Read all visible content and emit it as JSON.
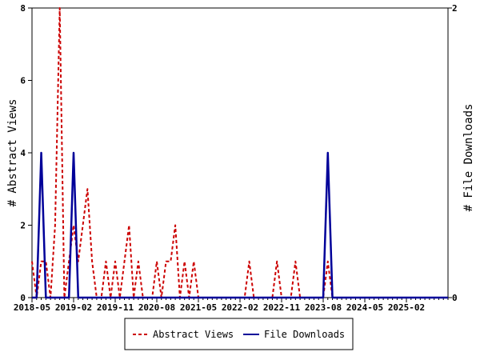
{
  "chart_data": {
    "type": "line",
    "title": "",
    "x_tick_labels": [
      "2018-05",
      "2019-02",
      "2019-11",
      "2020-08",
      "2021-05",
      "2022-02",
      "2022-11",
      "2023-08",
      "2024-05",
      "2025-02"
    ],
    "x_range": [
      "2018-05",
      "2025-11"
    ],
    "y_left": {
      "label": "# Abstract Views",
      "range": [
        0,
        8
      ],
      "ticks": [
        "0",
        "2",
        "4",
        "6",
        "8"
      ]
    },
    "y_right": {
      "label": "# File Downloads",
      "range": [
        0,
        2
      ],
      "ticks": [
        "0",
        "2"
      ]
    },
    "legend": {
      "placement": "bottom",
      "entries": [
        "Abstract Views",
        "File Downloads"
      ]
    },
    "grid": false,
    "series": [
      {
        "name": "Abstract Views",
        "axis": "left",
        "color": "#cc0000",
        "style": "dashed",
        "points": [
          [
            "2018-05",
            1
          ],
          [
            "2018-06",
            0
          ],
          [
            "2018-07",
            1
          ],
          [
            "2018-08",
            1
          ],
          [
            "2018-09",
            0
          ],
          [
            "2018-10",
            2
          ],
          [
            "2018-11",
            8
          ],
          [
            "2018-12",
            0
          ],
          [
            "2019-01",
            1
          ],
          [
            "2019-02",
            2
          ],
          [
            "2019-03",
            1
          ],
          [
            "2019-04",
            2
          ],
          [
            "2019-05",
            3
          ],
          [
            "2019-06",
            1
          ],
          [
            "2019-07",
            0
          ],
          [
            "2019-08",
            0
          ],
          [
            "2019-09",
            1
          ],
          [
            "2019-10",
            0
          ],
          [
            "2019-11",
            1
          ],
          [
            "2019-12",
            0
          ],
          [
            "2020-01",
            1
          ],
          [
            "2020-02",
            2
          ],
          [
            "2020-03",
            0
          ],
          [
            "2020-04",
            1
          ],
          [
            "2020-05",
            0
          ],
          [
            "2020-06",
            0
          ],
          [
            "2020-07",
            0
          ],
          [
            "2020-08",
            1
          ],
          [
            "2020-09",
            0
          ],
          [
            "2020-10",
            1
          ],
          [
            "2020-11",
            1
          ],
          [
            "2020-12",
            2
          ],
          [
            "2021-01",
            0
          ],
          [
            "2021-02",
            1
          ],
          [
            "2021-03",
            0
          ],
          [
            "2021-04",
            1
          ],
          [
            "2021-05",
            0
          ],
          [
            "2021-06",
            0
          ],
          [
            "2021-07",
            0
          ],
          [
            "2021-08",
            0
          ],
          [
            "2021-09",
            0
          ],
          [
            "2021-10",
            0
          ],
          [
            "2021-11",
            0
          ],
          [
            "2021-12",
            0
          ],
          [
            "2022-01",
            0
          ],
          [
            "2022-02",
            0
          ],
          [
            "2022-03",
            0
          ],
          [
            "2022-04",
            1
          ],
          [
            "2022-05",
            0
          ],
          [
            "2022-06",
            0
          ],
          [
            "2022-07",
            0
          ],
          [
            "2022-08",
            0
          ],
          [
            "2022-09",
            0
          ],
          [
            "2022-10",
            1
          ],
          [
            "2022-11",
            0
          ],
          [
            "2022-12",
            0
          ],
          [
            "2023-01",
            0
          ],
          [
            "2023-02",
            1
          ],
          [
            "2023-03",
            0
          ],
          [
            "2023-04",
            0
          ],
          [
            "2023-05",
            0
          ],
          [
            "2023-06",
            0
          ],
          [
            "2023-07",
            0
          ],
          [
            "2023-08",
            0
          ],
          [
            "2023-09",
            1
          ],
          [
            "2023-10",
            0
          ],
          [
            "2023-11",
            0
          ],
          [
            "2023-12",
            0
          ],
          [
            "2024-01",
            0
          ],
          [
            "2024-02",
            0
          ],
          [
            "2024-03",
            0
          ],
          [
            "2024-04",
            0
          ],
          [
            "2024-05",
            0
          ],
          [
            "2024-06",
            0
          ],
          [
            "2024-07",
            0
          ],
          [
            "2024-08",
            0
          ],
          [
            "2024-09",
            0
          ],
          [
            "2024-10",
            0
          ],
          [
            "2024-11",
            0
          ],
          [
            "2024-12",
            0
          ],
          [
            "2025-01",
            0
          ],
          [
            "2025-02",
            0
          ],
          [
            "2025-03",
            0
          ],
          [
            "2025-04",
            0
          ],
          [
            "2025-05",
            0
          ],
          [
            "2025-06",
            0
          ],
          [
            "2025-07",
            0
          ],
          [
            "2025-08",
            0
          ],
          [
            "2025-09",
            0
          ],
          [
            "2025-10",
            0
          ],
          [
            "2025-11",
            0
          ]
        ]
      },
      {
        "name": "File Downloads",
        "axis": "right",
        "color": "#000099",
        "style": "solid",
        "points": [
          [
            "2018-05",
            0
          ],
          [
            "2018-06",
            0
          ],
          [
            "2018-07",
            1
          ],
          [
            "2018-08",
            0
          ],
          [
            "2018-09",
            0
          ],
          [
            "2018-10",
            0
          ],
          [
            "2018-11",
            0
          ],
          [
            "2018-12",
            0
          ],
          [
            "2019-01",
            0
          ],
          [
            "2019-02",
            1
          ],
          [
            "2019-03",
            0
          ],
          [
            "2019-04",
            0
          ],
          [
            "2019-05",
            0
          ],
          [
            "2019-06",
            0
          ],
          [
            "2019-07",
            0
          ],
          [
            "2019-08",
            0
          ],
          [
            "2019-09",
            0
          ],
          [
            "2019-10",
            0
          ],
          [
            "2019-11",
            0
          ],
          [
            "2019-12",
            0
          ],
          [
            "2020-01",
            0
          ],
          [
            "2020-02",
            0
          ],
          [
            "2020-03",
            0
          ],
          [
            "2020-04",
            0
          ],
          [
            "2020-05",
            0
          ],
          [
            "2020-06",
            0
          ],
          [
            "2020-07",
            0
          ],
          [
            "2020-08",
            0
          ],
          [
            "2020-09",
            0
          ],
          [
            "2020-10",
            0
          ],
          [
            "2020-11",
            0
          ],
          [
            "2020-12",
            0
          ],
          [
            "2021-01",
            0
          ],
          [
            "2021-02",
            0
          ],
          [
            "2021-03",
            0
          ],
          [
            "2021-04",
            0
          ],
          [
            "2021-05",
            0
          ],
          [
            "2021-06",
            0
          ],
          [
            "2021-07",
            0
          ],
          [
            "2021-08",
            0
          ],
          [
            "2021-09",
            0
          ],
          [
            "2021-10",
            0
          ],
          [
            "2021-11",
            0
          ],
          [
            "2021-12",
            0
          ],
          [
            "2022-01",
            0
          ],
          [
            "2022-02",
            0
          ],
          [
            "2022-03",
            0
          ],
          [
            "2022-04",
            0
          ],
          [
            "2022-05",
            0
          ],
          [
            "2022-06",
            0
          ],
          [
            "2022-07",
            0
          ],
          [
            "2022-08",
            0
          ],
          [
            "2022-09",
            0
          ],
          [
            "2022-10",
            0
          ],
          [
            "2022-11",
            0
          ],
          [
            "2022-12",
            0
          ],
          [
            "2023-01",
            0
          ],
          [
            "2023-02",
            0
          ],
          [
            "2023-03",
            0
          ],
          [
            "2023-04",
            0
          ],
          [
            "2023-05",
            0
          ],
          [
            "2023-06",
            0
          ],
          [
            "2023-07",
            0
          ],
          [
            "2023-08",
            0
          ],
          [
            "2023-09",
            1
          ],
          [
            "2023-10",
            0
          ],
          [
            "2023-11",
            0
          ],
          [
            "2023-12",
            0
          ],
          [
            "2024-01",
            0
          ],
          [
            "2024-02",
            0
          ],
          [
            "2024-03",
            0
          ],
          [
            "2024-04",
            0
          ],
          [
            "2024-05",
            0
          ],
          [
            "2024-06",
            0
          ],
          [
            "2024-07",
            0
          ],
          [
            "2024-08",
            0
          ],
          [
            "2024-09",
            0
          ],
          [
            "2024-10",
            0
          ],
          [
            "2024-11",
            0
          ],
          [
            "2024-12",
            0
          ],
          [
            "2025-01",
            0
          ],
          [
            "2025-02",
            0
          ],
          [
            "2025-03",
            0
          ],
          [
            "2025-04",
            0
          ],
          [
            "2025-05",
            0
          ],
          [
            "2025-06",
            0
          ],
          [
            "2025-07",
            0
          ],
          [
            "2025-08",
            0
          ],
          [
            "2025-09",
            0
          ],
          [
            "2025-10",
            0
          ],
          [
            "2025-11",
            0
          ]
        ]
      }
    ]
  }
}
